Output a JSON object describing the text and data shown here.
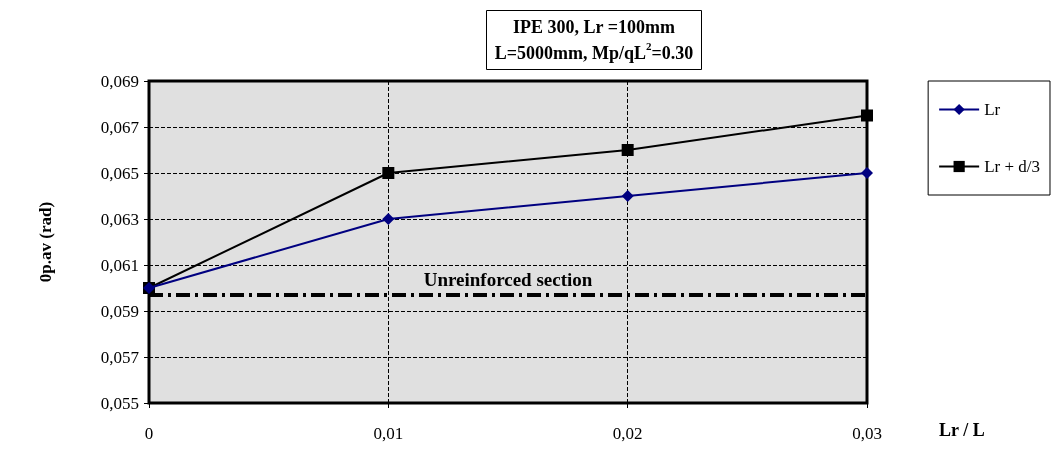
{
  "chart_data": {
    "type": "line",
    "title": "IPE 300, Lr =100mm",
    "subtitle": "L=5000mm, Mp/qL$^{2}$=0.30",
    "xlabel": "Lr / L",
    "ylabel": "0p.av (rad)",
    "x": [
      0,
      0.01,
      0.02,
      0.03
    ],
    "series": [
      {
        "name": "Lr",
        "color": "#000080",
        "marker": "diamond",
        "values": [
          0.06,
          0.063,
          0.064,
          0.065
        ]
      },
      {
        "name": "Lr + d/3",
        "color": "#000000",
        "marker": "square",
        "values": [
          0.06,
          0.065,
          0.066,
          0.0675
        ]
      }
    ],
    "xlim": [
      0,
      0.03
    ],
    "xticks": [
      0,
      {
        "value": 0.01,
        "label": "0,01"
      },
      {
        "value": 0.02,
        "label": "0,02"
      },
      {
        "value": 0.03,
        "label": "0,03"
      }
    ],
    "ylim": [
      0.055,
      0.069
    ],
    "yticks": [
      {
        "value": 0.055,
        "label": "0,055"
      },
      {
        "value": 0.057,
        "label": "0,057"
      },
      {
        "value": 0.059,
        "label": "0,059"
      },
      {
        "value": 0.061,
        "label": "0,061"
      },
      {
        "value": 0.063,
        "label": "0,063"
      },
      {
        "value": 0.065,
        "label": "0,065"
      },
      {
        "value": 0.067,
        "label": "0,067"
      },
      {
        "value": 0.069,
        "label": "0,069"
      }
    ],
    "ref_lines": [
      {
        "axis": "y",
        "value": 0.0597,
        "label": "Unreinforced section",
        "color": "#000000",
        "line_style": "dashdot"
      }
    ],
    "grid": true,
    "legend": "right",
    "line_style": "solid"
  }
}
